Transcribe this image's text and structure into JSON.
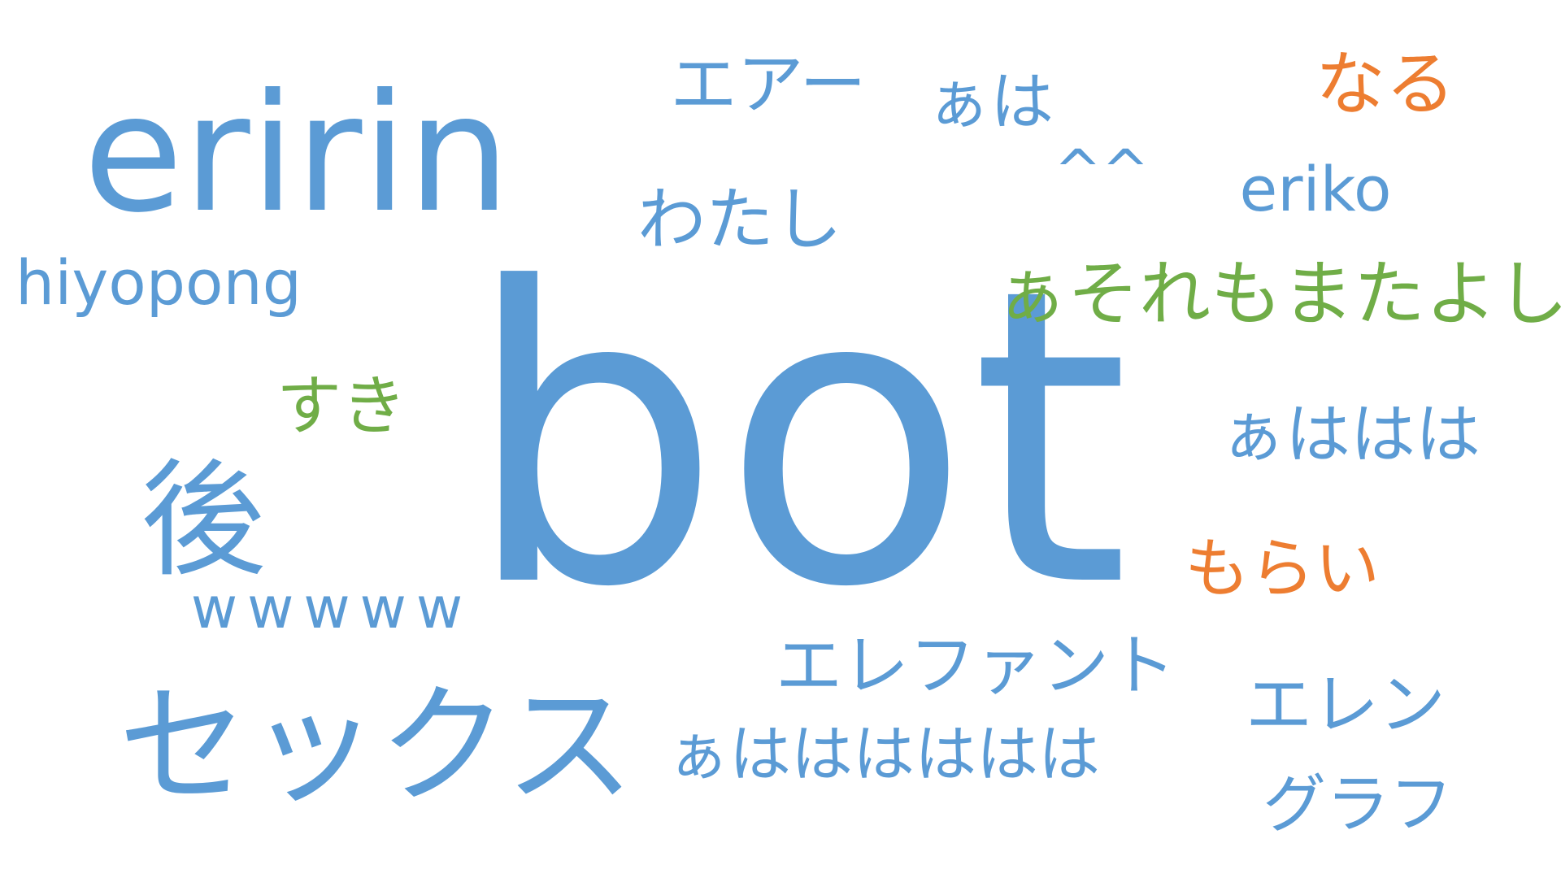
{
  "palette": {
    "blue": "#5b9bd5",
    "green": "#70ad47",
    "orange": "#ed7d31"
  },
  "words": [
    {
      "text": "bot",
      "color": "blue"
    },
    {
      "text": "eririn",
      "color": "blue"
    },
    {
      "text": "セックス",
      "color": "blue"
    },
    {
      "text": "後",
      "color": "blue"
    },
    {
      "text": "hiyopong",
      "color": "blue"
    },
    {
      "text": "エアー",
      "color": "blue"
    },
    {
      "text": "ぁは",
      "color": "blue"
    },
    {
      "text": "なる",
      "color": "orange"
    },
    {
      "text": "^^",
      "color": "blue"
    },
    {
      "text": "eriko",
      "color": "blue"
    },
    {
      "text": "わたし",
      "color": "blue"
    },
    {
      "text": "ぁそれもまたよし",
      "color": "green"
    },
    {
      "text": "すき",
      "color": "green"
    },
    {
      "text": "ぁははは",
      "color": "blue"
    },
    {
      "text": "もらい",
      "color": "orange"
    },
    {
      "text": "wwwww",
      "color": "blue"
    },
    {
      "text": "エレファント",
      "color": "blue"
    },
    {
      "text": "エレン",
      "color": "blue"
    },
    {
      "text": "ぁはははははは",
      "color": "blue"
    },
    {
      "text": "グラフ",
      "color": "blue"
    }
  ]
}
